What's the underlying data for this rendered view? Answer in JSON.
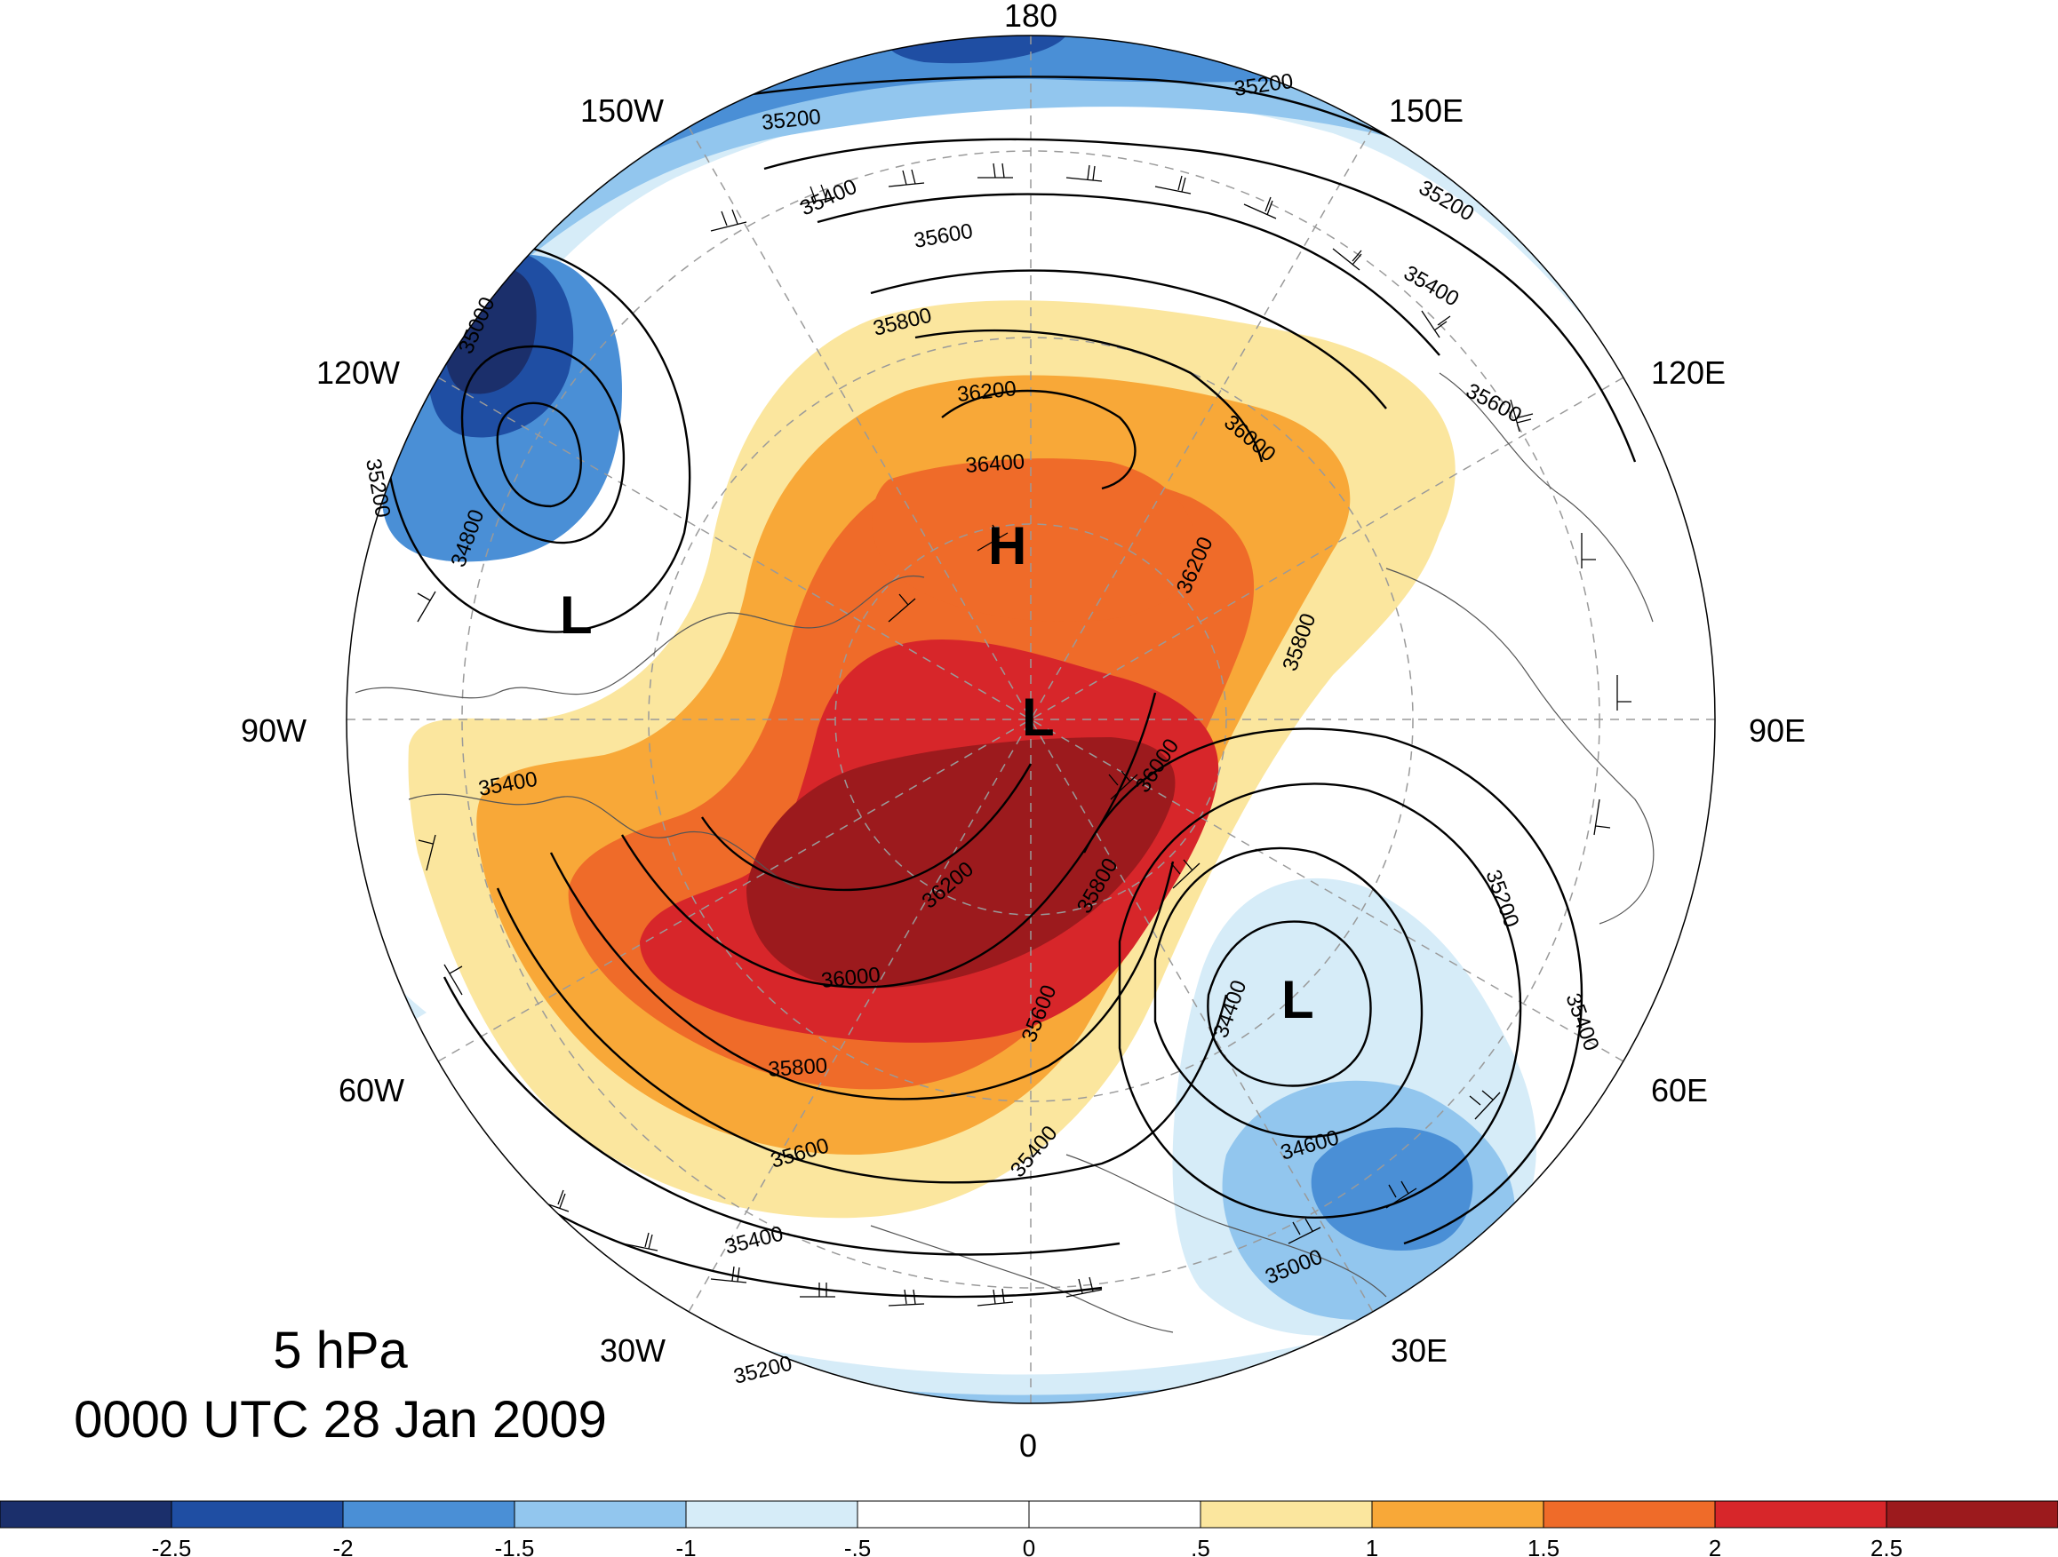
{
  "title_level": "5 hPa",
  "title_time": "0000 UTC 28 Jan 2009",
  "longitude_labels": [
    "180",
    "150E",
    "120E",
    "90E",
    "60E",
    "30E",
    "0",
    "30W",
    "60W",
    "90W",
    "120W",
    "150W"
  ],
  "contour_labels": [
    "35200",
    "35200",
    "35200",
    "35200",
    "35200",
    "35200",
    "35400",
    "35400",
    "35400",
    "35400",
    "35400",
    "35400",
    "35600",
    "35600",
    "35600",
    "35600",
    "35800",
    "35800",
    "35800",
    "35800",
    "36000",
    "36000",
    "36000",
    "36200",
    "36200",
    "36200",
    "36400",
    "35000",
    "35000",
    "34800",
    "34400",
    "34600"
  ],
  "centers": [
    "H",
    "L",
    "L",
    "L"
  ],
  "colorbar": {
    "tick_labels": [
      "-2.5",
      "-2",
      "-1.5",
      "-1",
      "-.5",
      "0",
      ".5",
      "1",
      "1.5",
      "2",
      "2.5"
    ],
    "colors": [
      "#1b2f6b",
      "#1f4ea3",
      "#4a8fd6",
      "#92c6ee",
      "#d6ecf8",
      "#ffffff",
      "#ffffff",
      "#fbe69e",
      "#f8a838",
      "#ef6b29",
      "#d7262a",
      "#9c1a1d"
    ]
  }
}
